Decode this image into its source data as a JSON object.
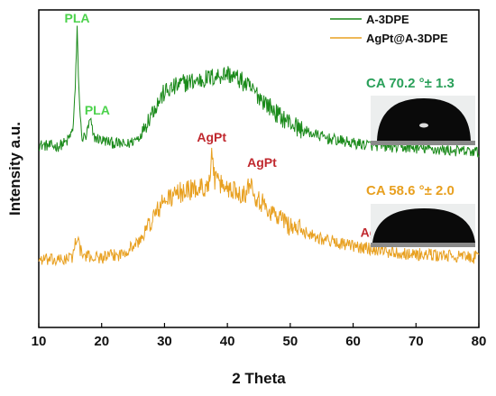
{
  "chart_data": {
    "type": "line",
    "title": "",
    "xlabel": "2 Theta",
    "ylabel": "Intensity a.u.",
    "xlim": [
      10,
      80
    ],
    "xticks": [
      10,
      20,
      30,
      40,
      50,
      60,
      70,
      80
    ],
    "yticks_shown": false,
    "grid": false,
    "legend_position": "top-right",
    "series": [
      {
        "name": "A-3DPE",
        "color": "#1a8a1a",
        "noise": 0.018,
        "points": [
          [
            10,
            0.575
          ],
          [
            13,
            0.57
          ],
          [
            14.5,
            0.585
          ],
          [
            15.4,
            0.62
          ],
          [
            15.8,
            0.75
          ],
          [
            16.1,
            0.935
          ],
          [
            16.4,
            0.74
          ],
          [
            16.8,
            0.6
          ],
          [
            17.5,
            0.6
          ],
          [
            18.2,
            0.655
          ],
          [
            18.7,
            0.6
          ],
          [
            20,
            0.59
          ],
          [
            22,
            0.58
          ],
          [
            24,
            0.575
          ],
          [
            26,
            0.6
          ],
          [
            28,
            0.68
          ],
          [
            30,
            0.74
          ],
          [
            33,
            0.77
          ],
          [
            36,
            0.78
          ],
          [
            38,
            0.79
          ],
          [
            40,
            0.8
          ],
          [
            42,
            0.78
          ],
          [
            45,
            0.73
          ],
          [
            48,
            0.67
          ],
          [
            52,
            0.62
          ],
          [
            56,
            0.595
          ],
          [
            60,
            0.58
          ],
          [
            65,
            0.57
          ],
          [
            70,
            0.565
          ],
          [
            75,
            0.558
          ],
          [
            80,
            0.552
          ]
        ]
      },
      {
        "name": "AgPt@A-3DPE",
        "color": "#e8a020",
        "noise": 0.02,
        "points": [
          [
            10,
            0.215
          ],
          [
            13,
            0.21
          ],
          [
            15.3,
            0.22
          ],
          [
            15.8,
            0.265
          ],
          [
            16.1,
            0.29
          ],
          [
            16.5,
            0.25
          ],
          [
            17,
            0.225
          ],
          [
            20,
            0.22
          ],
          [
            23,
            0.23
          ],
          [
            26,
            0.27
          ],
          [
            28,
            0.34
          ],
          [
            30,
            0.4
          ],
          [
            33,
            0.43
          ],
          [
            36,
            0.44
          ],
          [
            37.2,
            0.455
          ],
          [
            37.6,
            0.56
          ],
          [
            38,
            0.46
          ],
          [
            40,
            0.44
          ],
          [
            43,
            0.42
          ],
          [
            43.8,
            0.475
          ],
          [
            44.3,
            0.42
          ],
          [
            46,
            0.38
          ],
          [
            50,
            0.32
          ],
          [
            55,
            0.28
          ],
          [
            60,
            0.255
          ],
          [
            64,
            0.245
          ],
          [
            64.5,
            0.255
          ],
          [
            65,
            0.24
          ],
          [
            70,
            0.23
          ],
          [
            75,
            0.225
          ],
          [
            80,
            0.22
          ]
        ]
      }
    ],
    "annotations": [
      {
        "text": "PLA",
        "x": 16.1,
        "y": 0.96,
        "color": "#4cd24c"
      },
      {
        "text": "PLA",
        "x": 19.3,
        "y": 0.67,
        "color": "#4cd24c"
      },
      {
        "text": "AgPt",
        "x": 37.5,
        "y": 0.585,
        "color": "#c0282e"
      },
      {
        "text": "AgPt",
        "x": 45.5,
        "y": 0.505,
        "color": "#c0282e"
      },
      {
        "text": "AgPt",
        "x": 63.5,
        "y": 0.285,
        "color": "#c0282e"
      }
    ]
  },
  "contact_angles": [
    {
      "label": "CA 70.2 °± 1.3",
      "color": "#2aa05a"
    },
    {
      "label": "CA 58.6 °± 2.0",
      "color": "#e8a020"
    }
  ]
}
